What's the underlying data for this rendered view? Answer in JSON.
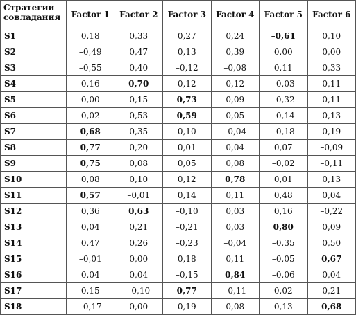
{
  "table": {
    "row_header": "Стратегии совладания",
    "columns": [
      "Factor 1",
      "Factor 2",
      "Factor 3",
      "Factor 4",
      "Factor 5",
      "Factor 6"
    ],
    "rows": [
      {
        "label": "S1",
        "values": [
          "0,18",
          "0,33",
          "0,27",
          "0,24",
          "–0,61",
          "0,10"
        ],
        "bold": [
          4
        ]
      },
      {
        "label": "S2",
        "values": [
          "–0,49",
          "0,47",
          "0,13",
          "0,39",
          "0,00",
          "0,00"
        ],
        "bold": []
      },
      {
        "label": "S3",
        "values": [
          "–0,55",
          "0,40",
          "–0,12",
          "–0,08",
          "0,11",
          "0,33"
        ],
        "bold": []
      },
      {
        "label": "S4",
        "values": [
          "0,16",
          "0,70",
          "0,12",
          "0,12",
          "–0,03",
          "0,11"
        ],
        "bold": [
          1
        ]
      },
      {
        "label": "S5",
        "values": [
          "0,00",
          "0,15",
          "0,73",
          "0,09",
          "–0,32",
          "0,11"
        ],
        "bold": [
          2
        ]
      },
      {
        "label": "S6",
        "values": [
          "0,02",
          "0,53",
          "0,59",
          "0,05",
          "–0,14",
          "0,13"
        ],
        "bold": [
          2
        ]
      },
      {
        "label": "S7",
        "values": [
          "0,68",
          "0,35",
          "0,10",
          "–0,04",
          "–0,18",
          "0,19"
        ],
        "bold": [
          0
        ]
      },
      {
        "label": "S8",
        "values": [
          "0,77",
          "0,20",
          "0,01",
          "0,04",
          "0,07",
          "–0,09"
        ],
        "bold": [
          0
        ]
      },
      {
        "label": "S9",
        "values": [
          "0,75",
          "0,08",
          "0,05",
          "0,08",
          "–0,02",
          "–0,11"
        ],
        "bold": [
          0
        ]
      },
      {
        "label": "S10",
        "values": [
          "0,08",
          "0,10",
          "0,12",
          "0,78",
          "0,01",
          "0,13"
        ],
        "bold": [
          3
        ]
      },
      {
        "label": "S11",
        "values": [
          "0,57",
          "–0,01",
          "0,14",
          "0,11",
          "0,48",
          "0,04"
        ],
        "bold": [
          0
        ]
      },
      {
        "label": "S12",
        "values": [
          "0,36",
          "0,63",
          "–0,10",
          "0,03",
          "0,16",
          "–0,22"
        ],
        "bold": [
          1
        ]
      },
      {
        "label": "S13",
        "values": [
          "0,04",
          "0,21",
          "–0,21",
          "0,03",
          "0,80",
          "0,09"
        ],
        "bold": [
          4
        ]
      },
      {
        "label": "S14",
        "values": [
          "0,47",
          "0,26",
          "–0,23",
          "–0,04",
          "–0,35",
          "0,50"
        ],
        "bold": []
      },
      {
        "label": "S15",
        "values": [
          "–0,01",
          "0,00",
          "0,18",
          "0,11",
          "–0,05",
          "0,67"
        ],
        "bold": [
          5
        ]
      },
      {
        "label": "S16",
        "values": [
          "0,04",
          "0,04",
          "–0,15",
          "0,84",
          "–0,06",
          "0,04"
        ],
        "bold": [
          3
        ]
      },
      {
        "label": "S17",
        "values": [
          "0,15",
          "–0,10",
          "0,77",
          "–0,11",
          "0,02",
          "0,21"
        ],
        "bold": [
          2
        ]
      },
      {
        "label": "S18",
        "values": [
          "–0,17",
          "0,00",
          "0,19",
          "0,08",
          "0,13",
          "0,68"
        ],
        "bold": [
          5
        ]
      }
    ]
  }
}
